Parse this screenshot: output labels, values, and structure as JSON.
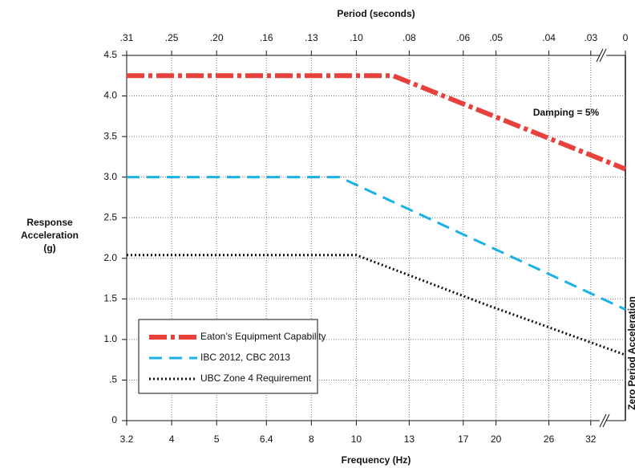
{
  "chart_data": {
    "type": "line",
    "title": "Period (seconds)",
    "xlabel": "Frequency (Hz)",
    "ylabel": [
      "Response",
      "Acceleration",
      "(g)"
    ],
    "right_label": "Zero Period Acceleration",
    "annotation": "Damping = 5%",
    "xscale": "log",
    "xlim": [
      3.2,
      38
    ],
    "xticks": [
      3.2,
      4,
      5,
      6.4,
      8,
      10,
      13,
      17,
      20,
      26,
      32
    ],
    "x2ticks": [
      {
        "value": 3.2,
        "label": ".31"
      },
      {
        "value": 4,
        "label": ".25"
      },
      {
        "value": 5,
        "label": ".20"
      },
      {
        "value": 6.4,
        "label": ".16"
      },
      {
        "value": 8,
        "label": ".13"
      },
      {
        "value": 10,
        "label": ".10"
      },
      {
        "value": 13,
        "label": ".08"
      },
      {
        "value": 17,
        "label": ".06"
      },
      {
        "value": 20,
        "label": ".05"
      },
      {
        "value": 26,
        "label": ".04"
      },
      {
        "value": 32,
        "label": ".03"
      },
      {
        "value": 38,
        "label": "0"
      }
    ],
    "ylim": [
      0,
      4.5
    ],
    "yticks": [
      0,
      {
        "value": 0.5,
        "label": ".5"
      },
      {
        "value": 1,
        "label": "1.0"
      },
      {
        "value": 1.5,
        "label": "1.5"
      },
      {
        "value": 2,
        "label": "2.0"
      },
      {
        "value": 2.5,
        "label": "2.5"
      },
      {
        "value": 3,
        "label": "3.0"
      },
      {
        "value": 3.5,
        "label": "3.5"
      },
      {
        "value": 4,
        "label": "4.0"
      },
      {
        "value": 4.5,
        "label": "4.5"
      }
    ],
    "grid": true,
    "legend": "lower left",
    "series": [
      {
        "name": "Eaton’s Equipment Capability",
        "color": "#e8413c",
        "width": 6,
        "dash": "22 5 5 5",
        "x": [
          3.2,
          12,
          38
        ],
        "values": [
          4.25,
          4.25,
          3.1
        ]
      },
      {
        "name": "IBC 2012, CBC 2013",
        "color": "#1ab0e8",
        "width": 3,
        "dash": "16 9",
        "x": [
          3.2,
          9.2,
          38
        ],
        "values": [
          3.0,
          3.0,
          1.37
        ]
      },
      {
        "name": "UBC Zone 4 Requirement",
        "color": "#111111",
        "width": 3,
        "dash": "2 3",
        "x": [
          3.2,
          10,
          19,
          38
        ],
        "values": [
          2.04,
          2.04,
          1.43,
          0.81
        ]
      }
    ]
  }
}
